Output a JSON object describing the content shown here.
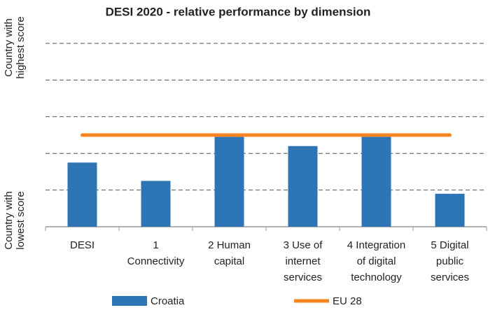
{
  "chart_data": {
    "type": "bar",
    "title": "DESI 2020 -  relative performance by dimension",
    "y_axis_labels": {
      "top": [
        "Country with",
        "highest score"
      ],
      "bottom": [
        "Country with",
        "lowest score"
      ]
    },
    "categories": [
      [
        "DESI"
      ],
      [
        "1",
        "Connectivity"
      ],
      [
        "2 Human",
        "capital"
      ],
      [
        "3 Use of",
        "internet",
        "services"
      ],
      [
        "4 Integration",
        "of digital",
        "technology"
      ],
      [
        "5 Digital",
        "public",
        "services"
      ]
    ],
    "series": [
      {
        "name": "Croatia",
        "type": "bar",
        "color": "#2e75b6",
        "values": [
          35,
          25,
          49,
          44,
          49,
          18
        ]
      },
      {
        "name": "EU 28",
        "type": "line",
        "color": "#f5841f",
        "values": [
          50,
          50,
          50,
          50,
          50,
          50
        ]
      }
    ],
    "ylim": [
      0,
      100
    ],
    "yticks": [
      0,
      20,
      40,
      60,
      80,
      100
    ],
    "grid": true
  }
}
